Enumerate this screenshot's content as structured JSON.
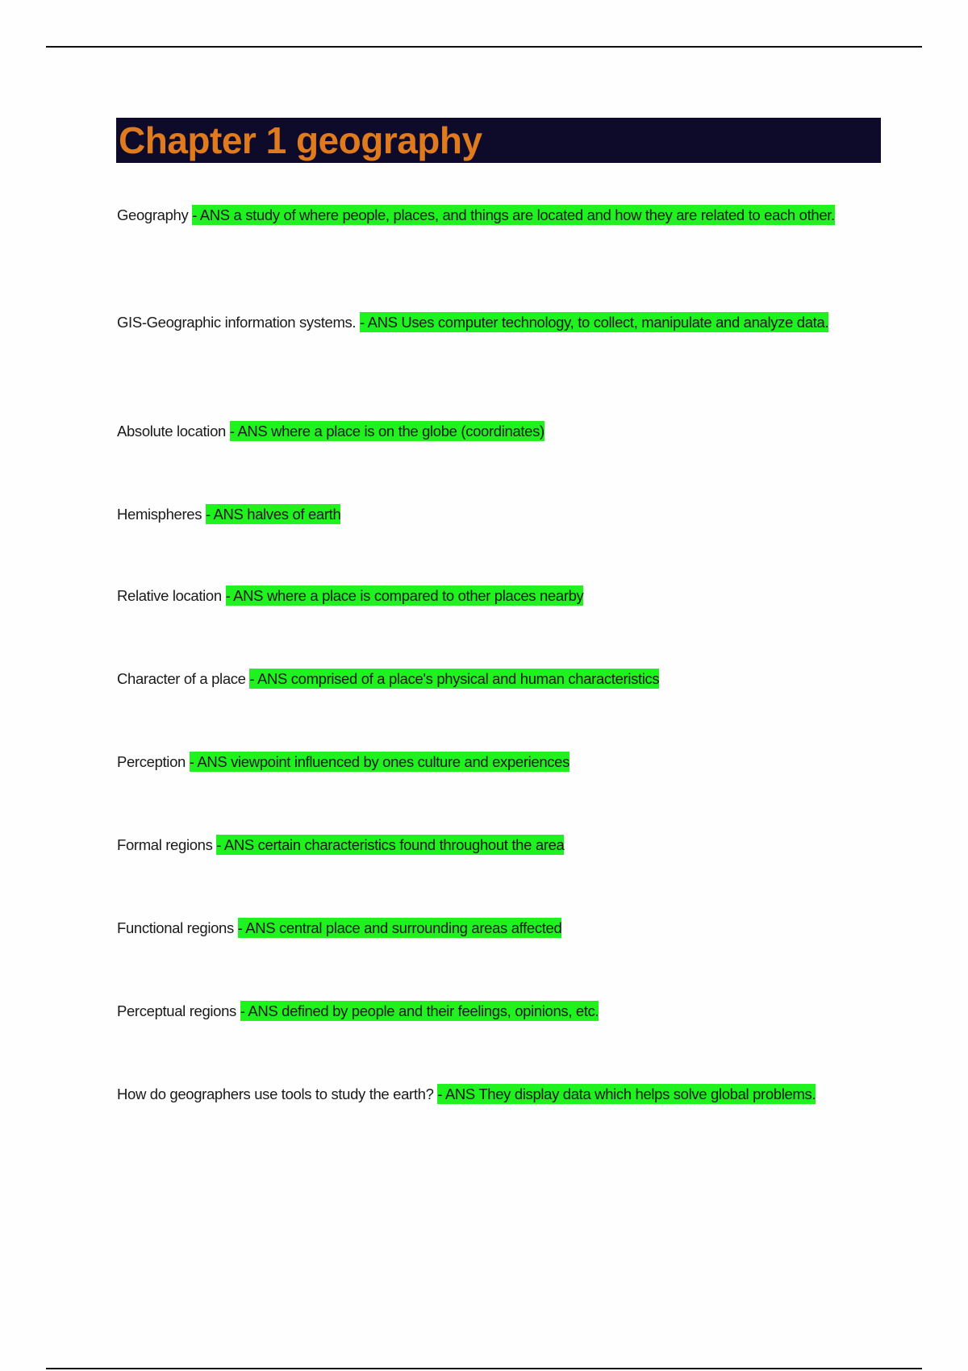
{
  "title": "Chapter 1 geography",
  "highlight_color": "#1ff21f",
  "title_color": "#e07a1f",
  "title_background": "#0d0a2a",
  "entries": [
    {
      "term": "Geography",
      "answer": "- ANS  a study of where people, places, and things are located and how they are related to each other."
    },
    {
      "term": "GIS-Geographic information systems.",
      "answer": "- ANS  Uses computer technology, to collect, manipulate and analyze data."
    },
    {
      "term": "Absolute location",
      "answer": "- ANS  where a place is on the globe (coordinates)"
    },
    {
      "term": "Hemispheres",
      "answer": "- ANS  halves of earth"
    },
    {
      "term": "Relative location",
      "answer": "- ANS  where a place is compared to other places nearby"
    },
    {
      "term": "Character of a place",
      "answer": "- ANS  comprised of a place's physical and human characteristics"
    },
    {
      "term": "Perception",
      "answer": "- ANS  viewpoint influenced by ones culture and experiences"
    },
    {
      "term": "Formal regions",
      "answer": "- ANS  certain characteristics found throughout the area"
    },
    {
      "term": "Functional regions",
      "answer": "- ANS  central place and surrounding areas affected"
    },
    {
      "term": "Perceptual regions",
      "answer": "- ANS  defined by people and their feelings, opinions, etc."
    },
    {
      "term": "How do geographers use tools to study the earth?",
      "answer": "- ANS  They display data which helps solve global problems."
    }
  ]
}
